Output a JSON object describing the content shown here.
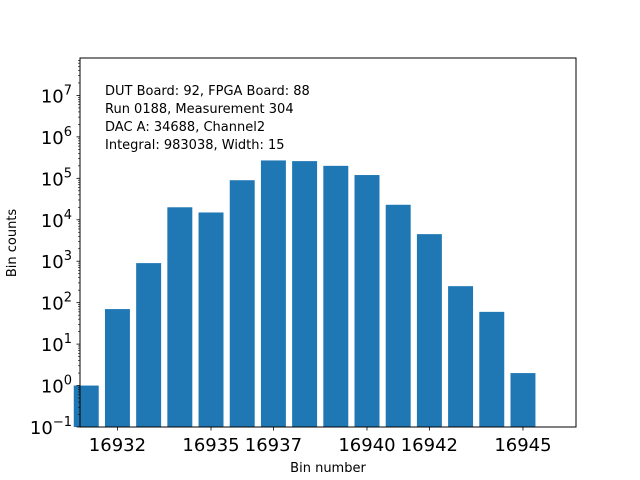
{
  "chart_data": {
    "type": "bar",
    "xlabel": "Bin number",
    "ylabel": "Bin counts",
    "yscale": "log",
    "ylim": [
      0.1,
      80000000
    ],
    "xlim": [
      16930.8,
      16946.7
    ],
    "x": [
      16931,
      16932,
      16933,
      16934,
      16935,
      16936,
      16937,
      16938,
      16939,
      16940,
      16941,
      16942,
      16943,
      16944,
      16945
    ],
    "values": [
      1,
      70,
      900,
      20000,
      15000,
      90000,
      270000,
      260000,
      200000,
      120000,
      23000,
      4500,
      250,
      60,
      2
    ],
    "x_ticks": [
      16932,
      16935,
      16937,
      16940,
      16942,
      16945
    ],
    "x_tick_labels": [
      "16932",
      "16935",
      "16937",
      "16940",
      "16942",
      "16945"
    ],
    "y_ticks": [
      {
        "value": 0.1,
        "base": "10",
        "exp": "−1"
      },
      {
        "value": 1,
        "base": "10",
        "exp": "0"
      },
      {
        "value": 10,
        "base": "10",
        "exp": "1"
      },
      {
        "value": 100,
        "base": "10",
        "exp": "2"
      },
      {
        "value": 1000,
        "base": "10",
        "exp": "3"
      },
      {
        "value": 10000,
        "base": "10",
        "exp": "4"
      },
      {
        "value": 100000,
        "base": "10",
        "exp": "5"
      },
      {
        "value": 1000000,
        "base": "10",
        "exp": "6"
      },
      {
        "value": 10000000,
        "base": "10",
        "exp": "7"
      }
    ],
    "annotations": [
      "DUT Board: 92, FPGA Board: 88",
      "Run 0188, Measurement 304",
      "DAC A: 34688, Channel2",
      "Integral: 983038, Width: 15"
    ],
    "bar_color": "#1f77b4",
    "grid": false,
    "legend": "none"
  }
}
